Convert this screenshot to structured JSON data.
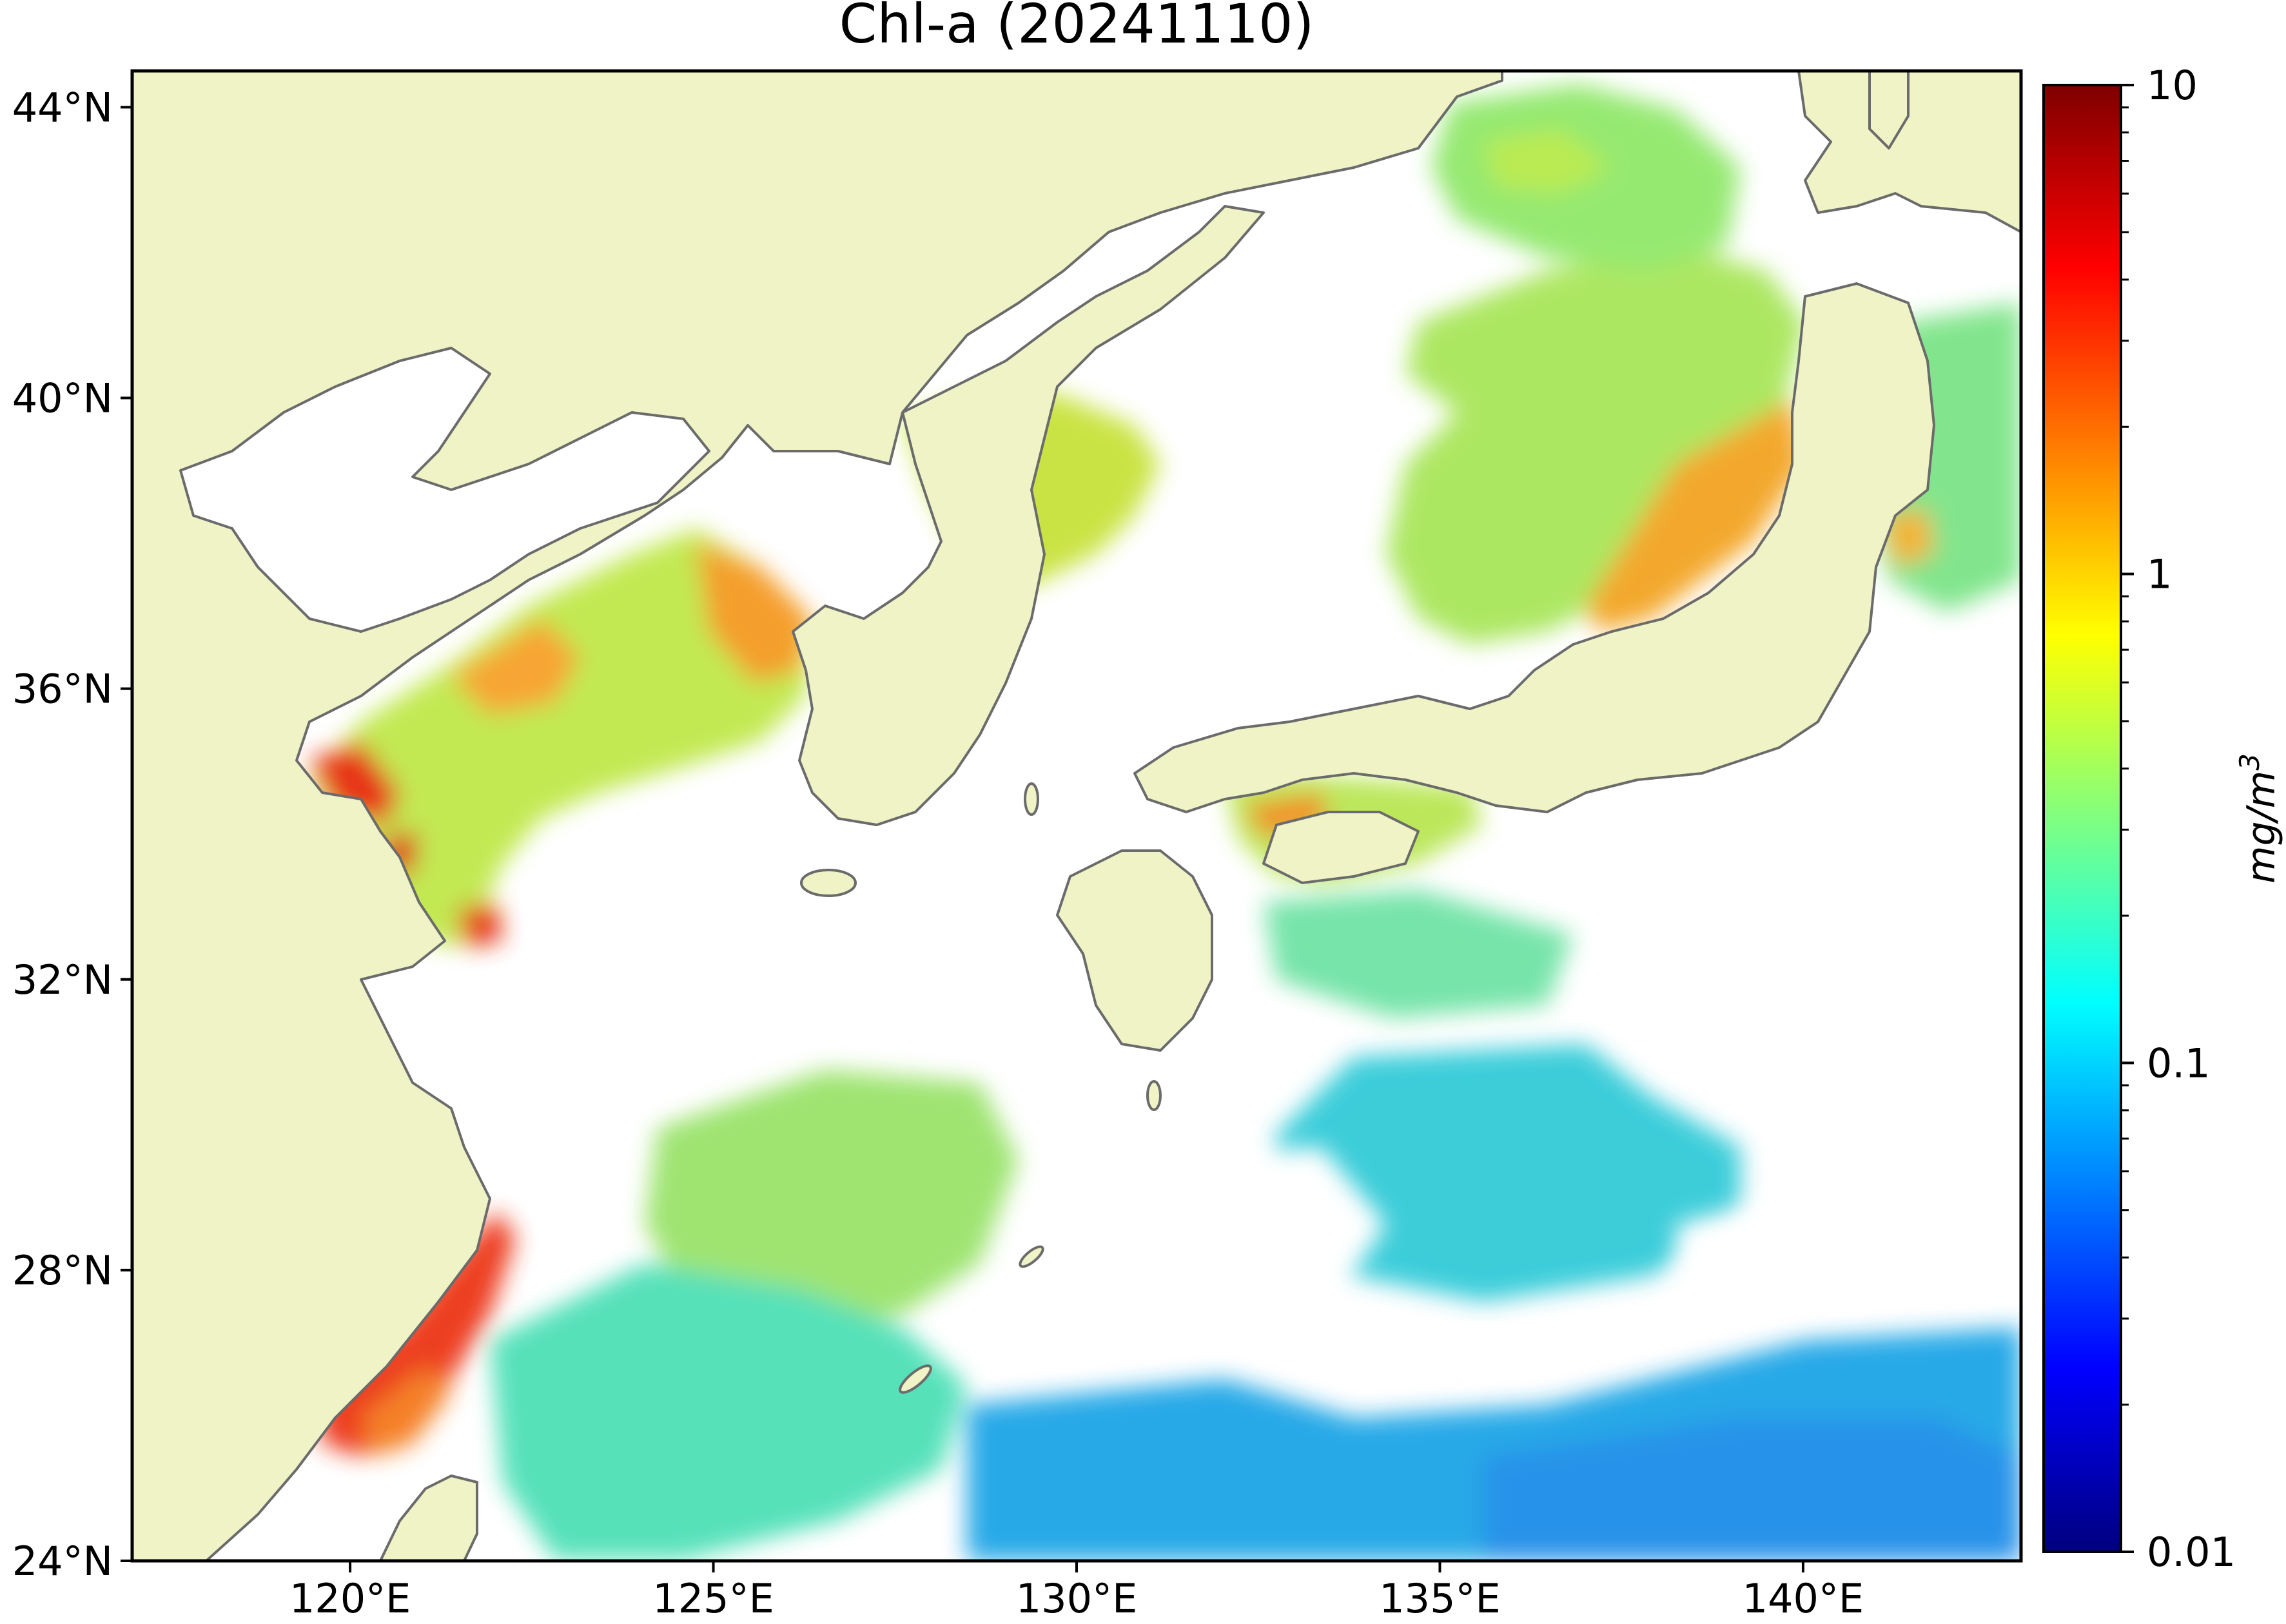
{
  "title": "Chl-a (20241110)",
  "map": {
    "lon_range": [
      117,
      143
    ],
    "lat_range": [
      24,
      44.5
    ],
    "land_color": "#eff3c6",
    "coast_color": "#6b6b6b",
    "cloud_color": "#ffffff",
    "x_ticks": [
      {
        "lon": 120,
        "label": "120°E"
      },
      {
        "lon": 125,
        "label": "125°E"
      },
      {
        "lon": 130,
        "label": "130°E"
      },
      {
        "lon": 135,
        "label": "135°E"
      },
      {
        "lon": 140,
        "label": "140°E"
      }
    ],
    "y_ticks": [
      {
        "lat": 24,
        "label": "24°N"
      },
      {
        "lat": 28,
        "label": "28°N"
      },
      {
        "lat": 32,
        "label": "32°N"
      },
      {
        "lat": 36,
        "label": "36°N"
      },
      {
        "lat": 40,
        "label": "40°N"
      },
      {
        "lat": 44,
        "label": "44°N"
      }
    ]
  },
  "colorbar": {
    "label": "mg/m",
    "label_sup": "3",
    "scale": "log",
    "range": [
      0.01,
      10
    ],
    "colormap": "jet",
    "ticks": [
      {
        "value": 10,
        "label": "10"
      },
      {
        "value": 1,
        "label": "1"
      },
      {
        "value": 0.1,
        "label": "0.1"
      },
      {
        "value": 0.01,
        "label": "0.01"
      }
    ]
  }
}
